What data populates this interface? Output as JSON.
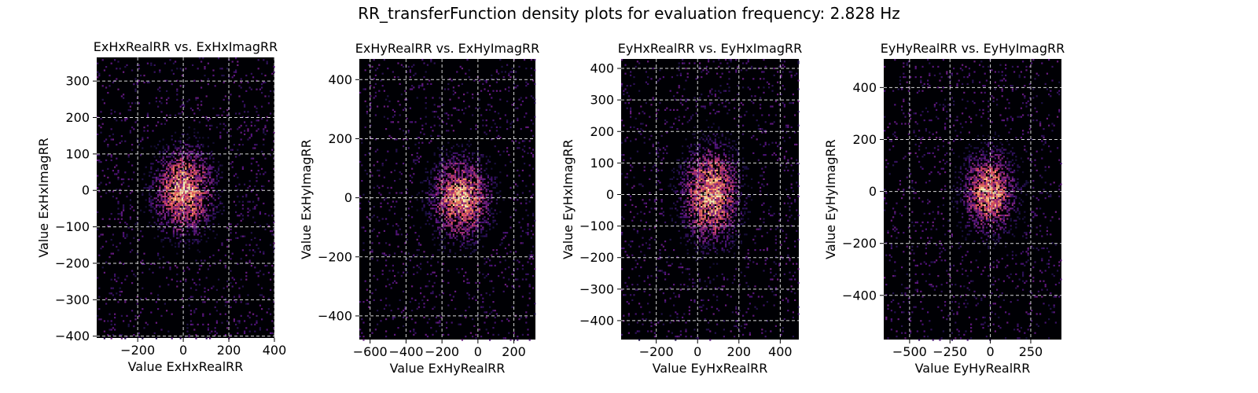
{
  "figure": {
    "title": "RR_transferFunction density plots for evaluation frequency: 2.828 Hz"
  },
  "colors": {
    "background": "#000004",
    "grid": "#d8d8d8",
    "colormap": [
      "#000004",
      "#1d1147",
      "#51127c",
      "#822681",
      "#b73779",
      "#e75263",
      "#fc8961",
      "#fec287",
      "#fcfdbf"
    ]
  },
  "chart_data": [
    {
      "type": "heatmap",
      "title": "ExHxRealRR vs. ExHxImagRR",
      "xlabel": "Value ExHxRealRR",
      "ylabel": "Value ExHxImagRR",
      "xlim": [
        -380,
        400
      ],
      "ylim": [
        -405,
        365
      ],
      "xticks": [
        -200,
        0,
        200,
        400
      ],
      "xtick_labels": [
        "−200",
        "0",
        "200",
        "400"
      ],
      "yticks": [
        -400,
        -300,
        -200,
        -100,
        0,
        100,
        200,
        300
      ],
      "ytick_labels": [
        "−400",
        "−300",
        "−200",
        "−100",
        "0",
        "100",
        "200",
        "300"
      ],
      "grid": true,
      "colormap": "magma",
      "density_center": [
        0,
        0
      ],
      "density_spread": [
        90,
        80
      ]
    },
    {
      "type": "heatmap",
      "title": "ExHyRealRR vs. ExHyImagRR",
      "xlabel": "Value ExHyRealRR",
      "ylabel": "Value ExHyImagRR",
      "xlim": [
        -660,
        320
      ],
      "ylim": [
        -480,
        470
      ],
      "xticks": [
        -600,
        -400,
        -200,
        0,
        200
      ],
      "xtick_labels": [
        "−600",
        "−400",
        "−200",
        "0",
        "200"
      ],
      "yticks": [
        -400,
        -200,
        0,
        200,
        400
      ],
      "ytick_labels": [
        "−400",
        "−200",
        "0",
        "200",
        "400"
      ],
      "grid": true,
      "colormap": "magma",
      "density_center": [
        -100,
        0
      ],
      "density_spread": [
        110,
        95
      ]
    },
    {
      "type": "heatmap",
      "title": "EyHxRealRR vs. EyHxImagRR",
      "xlabel": "Value EyHxRealRR",
      "ylabel": "Value EyHxImagRR",
      "xlim": [
        -370,
        490
      ],
      "ylim": [
        -460,
        430
      ],
      "xticks": [
        -200,
        0,
        200,
        400
      ],
      "xtick_labels": [
        "−200",
        "0",
        "200",
        "400"
      ],
      "yticks": [
        -400,
        -300,
        -200,
        -100,
        0,
        100,
        200,
        300,
        400
      ],
      "ytick_labels": [
        "−400",
        "−300",
        "−200",
        "−100",
        "0",
        "100",
        "200",
        "300",
        "400"
      ],
      "grid": true,
      "colormap": "magma",
      "density_center": [
        60,
        0
      ],
      "density_spread": [
        95,
        105
      ]
    },
    {
      "type": "heatmap",
      "title": "EyHyRealRR vs. EyHyImagRR",
      "xlabel": "Value EyHyRealRR",
      "ylabel": "Value EyHyImagRR",
      "xlim": [
        -660,
        440
      ],
      "ylim": [
        -570,
        510
      ],
      "xticks": [
        -500,
        -250,
        0,
        250
      ],
      "xtick_labels": [
        "−500",
        "−250",
        "0",
        "250"
      ],
      "yticks": [
        -400,
        -200,
        0,
        200,
        400
      ],
      "ytick_labels": [
        "−400",
        "−200",
        "0",
        "200",
        "400"
      ],
      "grid": true,
      "colormap": "magma",
      "density_center": [
        -10,
        0
      ],
      "density_spread": [
        110,
        105
      ]
    }
  ]
}
